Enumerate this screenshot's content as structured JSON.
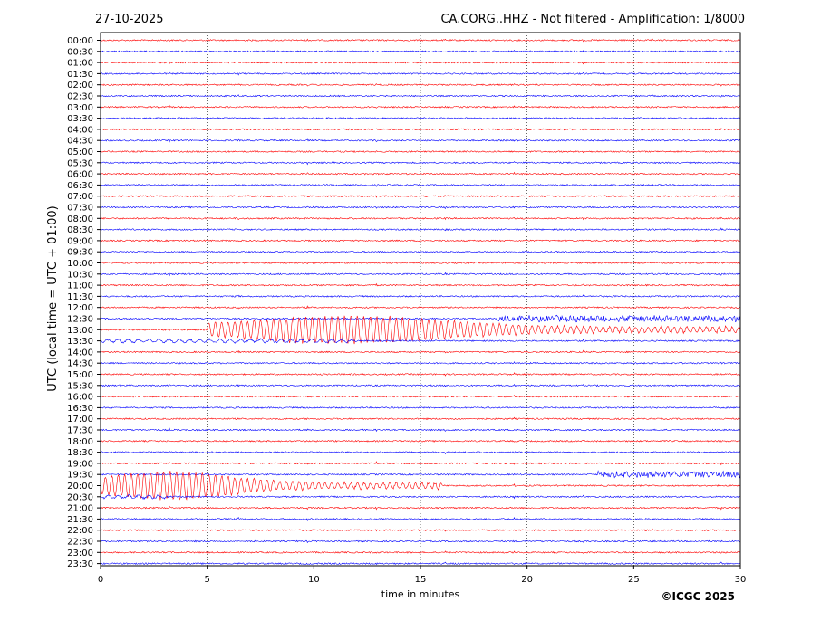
{
  "header": {
    "date": "27-10-2025",
    "station_info": "CA.CORG..HHZ - Not filtered - Amplification: 1/8000"
  },
  "footer": {
    "copyright": "©ICGC 2025"
  },
  "colors": {
    "even_trace": "#ff0000",
    "odd_trace": "#0000ff",
    "grid": "#000000"
  },
  "chart_data": {
    "type": "line",
    "title": "CA.CORG..HHZ - Not filtered - Amplification: 1/8000",
    "xlabel": "time in minutes",
    "ylabel": "UTC (local time = UTC + 01:00)",
    "xlim": [
      0,
      30
    ],
    "x_ticks": [
      0,
      5,
      10,
      15,
      20,
      25,
      30
    ],
    "grid": "vertical dotted lines at each x tick",
    "rows": [
      "00:00",
      "00:30",
      "01:00",
      "01:30",
      "02:00",
      "02:30",
      "03:00",
      "03:30",
      "04:00",
      "04:30",
      "05:00",
      "05:30",
      "06:00",
      "06:30",
      "07:00",
      "07:30",
      "08:00",
      "08:30",
      "09:00",
      "09:30",
      "10:00",
      "10:30",
      "11:00",
      "11:30",
      "12:00",
      "12:30",
      "13:00",
      "13:30",
      "14:00",
      "14:30",
      "15:00",
      "15:30",
      "16:00",
      "16:30",
      "17:00",
      "17:30",
      "18:00",
      "18:30",
      "19:00",
      "19:30",
      "20:00",
      "20:30",
      "21:00",
      "21:30",
      "22:00",
      "22:30",
      "23:00",
      "23:30"
    ],
    "events": [
      {
        "row": "12:30",
        "start_min": 18.6,
        "end_min": 30,
        "amplitude": "moderate"
      },
      {
        "row": "13:00",
        "start_min": 5.0,
        "end_min": 30,
        "peak_min": 11.5,
        "amplitude": "large"
      },
      {
        "row": "13:30",
        "start_min": 0,
        "end_min": 12,
        "amplitude": "small"
      },
      {
        "row": "19:30",
        "start_min": 23.3,
        "end_min": 30,
        "amplitude": "moderate"
      },
      {
        "row": "20:00",
        "start_min": 0,
        "end_min": 16,
        "peak_min": 3.2,
        "amplitude": "large"
      },
      {
        "row": "20:30",
        "start_min": 0,
        "end_min": 3,
        "amplitude": "small"
      }
    ]
  }
}
